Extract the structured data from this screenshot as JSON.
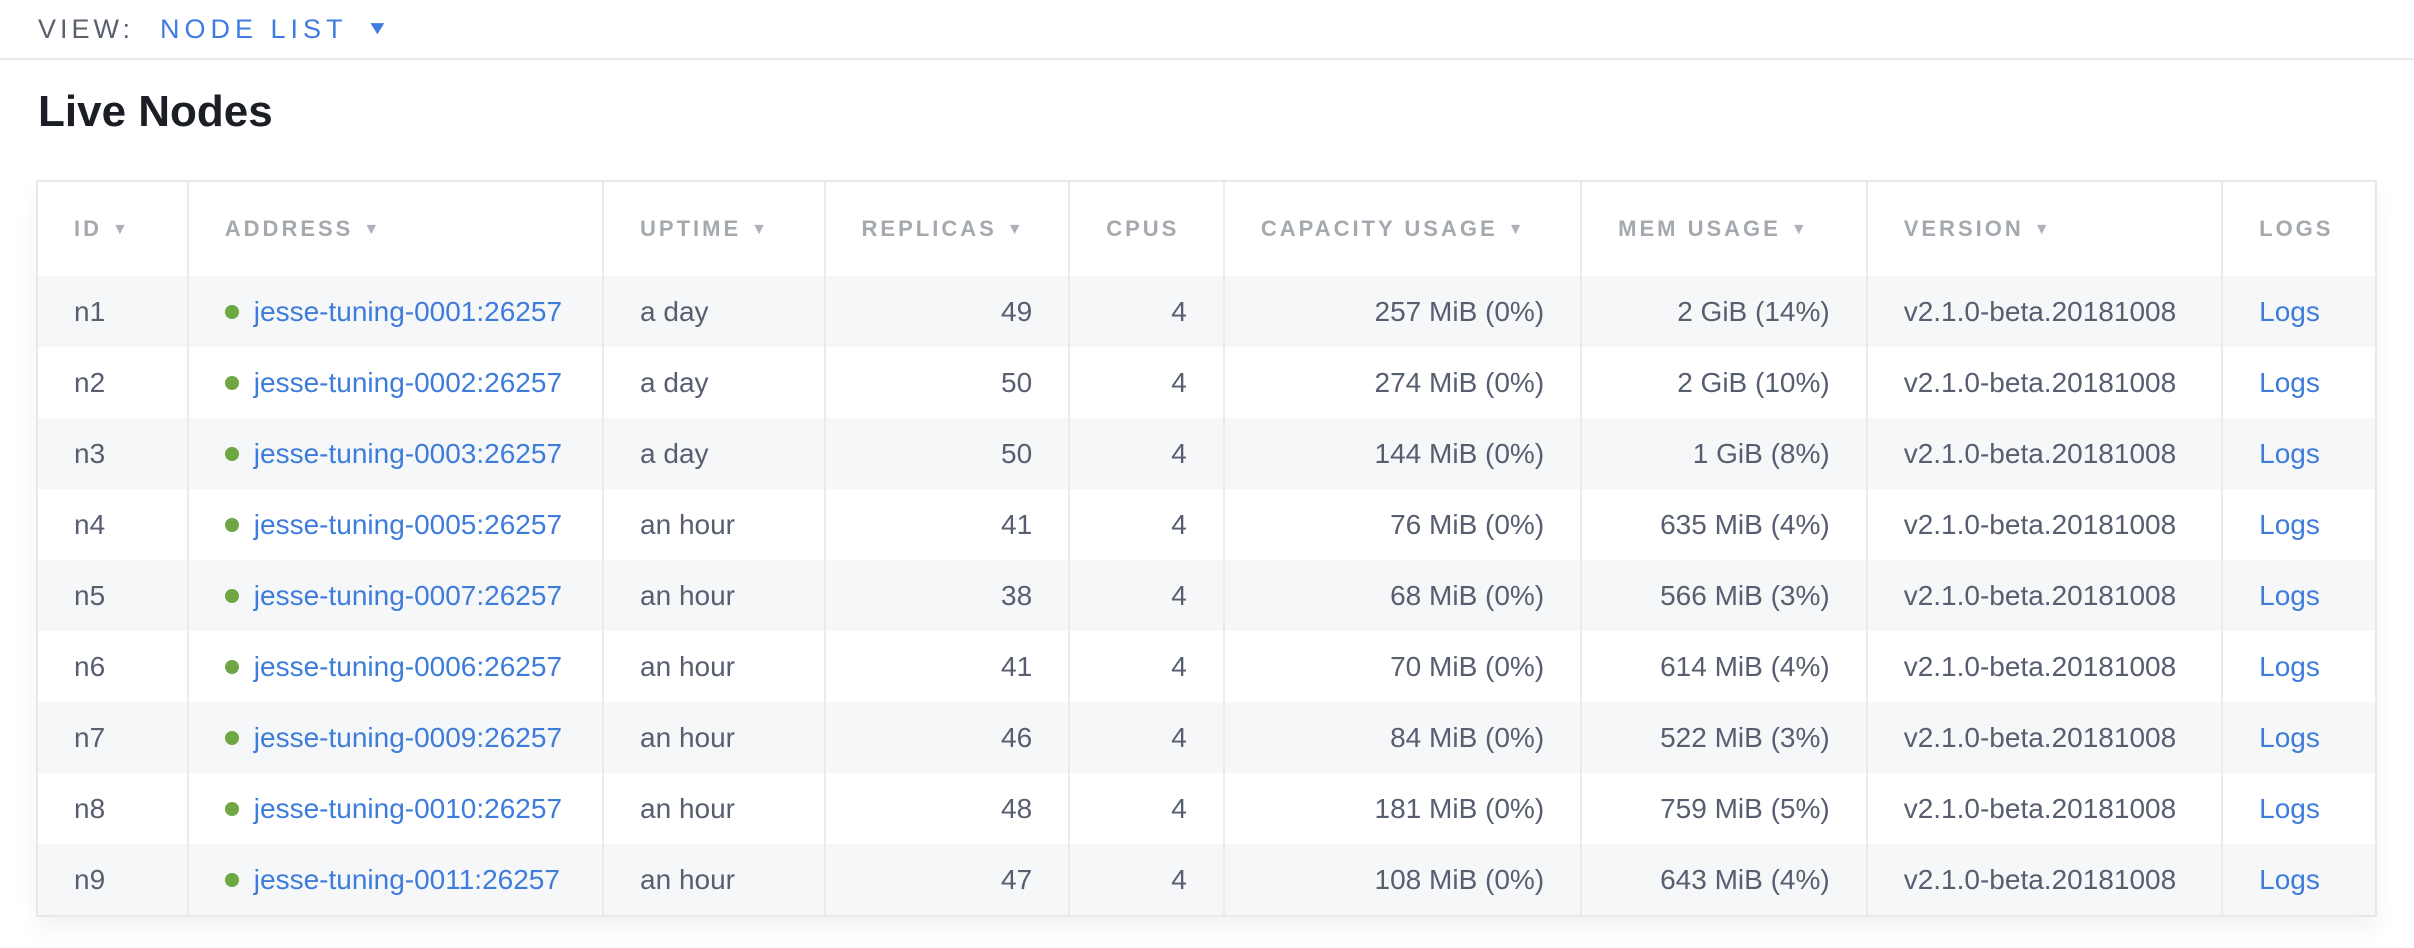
{
  "view_bar": {
    "label": "VIEW:",
    "selected": "NODE LIST"
  },
  "page": {
    "title": "Live Nodes"
  },
  "icons": {
    "sort_arrow": "▼",
    "dropdown_caret": "▼"
  },
  "colors": {
    "accent_blue": "#3f7ce2",
    "link_blue": "#3e7cdb",
    "healthy_green": "#6ea744",
    "header_gray": "#a4a9b0",
    "cell_text": "#565e70",
    "odd_row_bg": "#f6f7f8"
  },
  "table": {
    "logs_label": "Logs",
    "columns": [
      {
        "key": "id",
        "label": "ID",
        "sortable": true,
        "align": "left"
      },
      {
        "key": "address",
        "label": "ADDRESS",
        "sortable": true,
        "align": "left"
      },
      {
        "key": "uptime",
        "label": "UPTIME",
        "sortable": true,
        "align": "left"
      },
      {
        "key": "replicas",
        "label": "REPLICAS",
        "sortable": true,
        "align": "right"
      },
      {
        "key": "cpus",
        "label": "CPUS",
        "sortable": false,
        "align": "right"
      },
      {
        "key": "capacity",
        "label": "CAPACITY USAGE",
        "sortable": true,
        "align": "right"
      },
      {
        "key": "mem",
        "label": "MEM USAGE",
        "sortable": true,
        "align": "right"
      },
      {
        "key": "version",
        "label": "VERSION",
        "sortable": true,
        "align": "left"
      },
      {
        "key": "logs",
        "label": "LOGS",
        "sortable": false,
        "align": "left"
      }
    ],
    "rows": [
      {
        "id": "n1",
        "status": "healthy",
        "address": "jesse-tuning-0001:26257",
        "uptime": "a day",
        "replicas": "49",
        "cpus": "4",
        "capacity": "257 MiB (0%)",
        "mem": "2 GiB (14%)",
        "version": "v2.1.0-beta.20181008"
      },
      {
        "id": "n2",
        "status": "healthy",
        "address": "jesse-tuning-0002:26257",
        "uptime": "a day",
        "replicas": "50",
        "cpus": "4",
        "capacity": "274 MiB (0%)",
        "mem": "2 GiB (10%)",
        "version": "v2.1.0-beta.20181008"
      },
      {
        "id": "n3",
        "status": "healthy",
        "address": "jesse-tuning-0003:26257",
        "uptime": "a day",
        "replicas": "50",
        "cpus": "4",
        "capacity": "144 MiB (0%)",
        "mem": "1 GiB (8%)",
        "version": "v2.1.0-beta.20181008"
      },
      {
        "id": "n4",
        "status": "healthy",
        "address": "jesse-tuning-0005:26257",
        "uptime": "an hour",
        "replicas": "41",
        "cpus": "4",
        "capacity": "76 MiB (0%)",
        "mem": "635 MiB (4%)",
        "version": "v2.1.0-beta.20181008"
      },
      {
        "id": "n5",
        "status": "healthy",
        "address": "jesse-tuning-0007:26257",
        "uptime": "an hour",
        "replicas": "38",
        "cpus": "4",
        "capacity": "68 MiB (0%)",
        "mem": "566 MiB (3%)",
        "version": "v2.1.0-beta.20181008"
      },
      {
        "id": "n6",
        "status": "healthy",
        "address": "jesse-tuning-0006:26257",
        "uptime": "an hour",
        "replicas": "41",
        "cpus": "4",
        "capacity": "70 MiB (0%)",
        "mem": "614 MiB (4%)",
        "version": "v2.1.0-beta.20181008"
      },
      {
        "id": "n7",
        "status": "healthy",
        "address": "jesse-tuning-0009:26257",
        "uptime": "an hour",
        "replicas": "46",
        "cpus": "4",
        "capacity": "84 MiB (0%)",
        "mem": "522 MiB (3%)",
        "version": "v2.1.0-beta.20181008"
      },
      {
        "id": "n8",
        "status": "healthy",
        "address": "jesse-tuning-0010:26257",
        "uptime": "an hour",
        "replicas": "48",
        "cpus": "4",
        "capacity": "181 MiB (0%)",
        "mem": "759 MiB (5%)",
        "version": "v2.1.0-beta.20181008"
      },
      {
        "id": "n9",
        "status": "healthy",
        "address": "jesse-tuning-0011:26257",
        "uptime": "an hour",
        "replicas": "47",
        "cpus": "4",
        "capacity": "108 MiB (0%)",
        "mem": "643 MiB (4%)",
        "version": "v2.1.0-beta.20181008"
      }
    ]
  }
}
